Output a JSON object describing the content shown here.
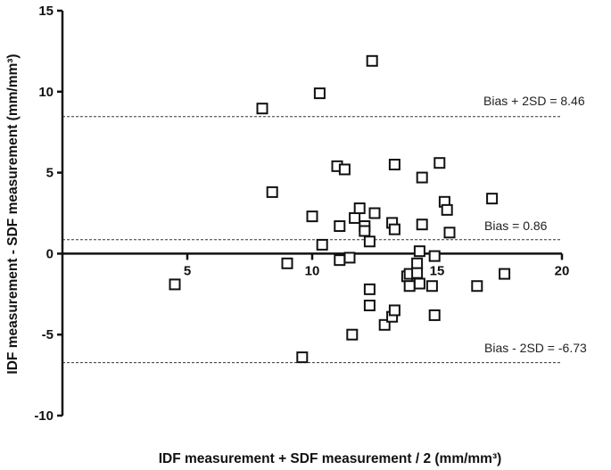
{
  "chart_data": {
    "type": "scatter",
    "title": "",
    "xlabel": "IDF measurement + SDF measurement / 2 (mm/mm³)",
    "ylabel": "IDF measurement - SDF measurement  (mm/mm³)",
    "xlim": [
      0,
      20
    ],
    "ylim": [
      -10,
      15
    ],
    "xticks": [
      5,
      10,
      15,
      20
    ],
    "yticks": [
      -10,
      -5,
      0,
      5,
      10,
      15
    ],
    "grid": false,
    "marker": "open-square",
    "reference_lines": [
      {
        "label": "Bias + 2SD = 8.46",
        "y": 8.46,
        "style": "dashed"
      },
      {
        "label": "Bias = 0.86",
        "y": 0.86,
        "style": "dashed"
      },
      {
        "label": "Bias - 2SD = -6.73",
        "y": -6.73,
        "style": "dashed"
      }
    ],
    "points": [
      [
        4.5,
        -1.9
      ],
      [
        8.0,
        8.96
      ],
      [
        8.4,
        3.8
      ],
      [
        9.0,
        -0.6
      ],
      [
        9.6,
        -6.4
      ],
      [
        10.0,
        2.3
      ],
      [
        10.3,
        9.9
      ],
      [
        10.4,
        0.55
      ],
      [
        11.0,
        5.4
      ],
      [
        11.1,
        1.7
      ],
      [
        11.1,
        -0.4
      ],
      [
        11.3,
        5.2
      ],
      [
        11.5,
        -0.25
      ],
      [
        11.6,
        -5.0
      ],
      [
        11.7,
        2.2
      ],
      [
        11.9,
        2.8
      ],
      [
        12.1,
        1.7
      ],
      [
        12.1,
        1.4
      ],
      [
        12.3,
        0.75
      ],
      [
        12.3,
        -2.2
      ],
      [
        12.3,
        -3.2
      ],
      [
        12.4,
        11.9
      ],
      [
        12.5,
        2.5
      ],
      [
        12.9,
        -4.4
      ],
      [
        13.2,
        1.9
      ],
      [
        13.2,
        -3.9
      ],
      [
        13.3,
        5.5
      ],
      [
        13.3,
        1.5
      ],
      [
        13.3,
        -3.5
      ],
      [
        13.8,
        -1.4
      ],
      [
        13.9,
        -1.25
      ],
      [
        13.9,
        -2.0
      ],
      [
        14.2,
        -0.6
      ],
      [
        14.2,
        -1.2
      ],
      [
        14.3,
        0.15
      ],
      [
        14.3,
        -1.85
      ],
      [
        14.4,
        4.7
      ],
      [
        14.4,
        1.8
      ],
      [
        14.8,
        -2.0
      ],
      [
        14.9,
        -0.15
      ],
      [
        14.9,
        -3.8
      ],
      [
        15.1,
        5.6
      ],
      [
        15.3,
        3.2
      ],
      [
        15.4,
        2.7
      ],
      [
        15.5,
        1.3
      ],
      [
        16.6,
        -2.0
      ],
      [
        17.2,
        3.4
      ],
      [
        17.7,
        -1.25
      ]
    ]
  }
}
